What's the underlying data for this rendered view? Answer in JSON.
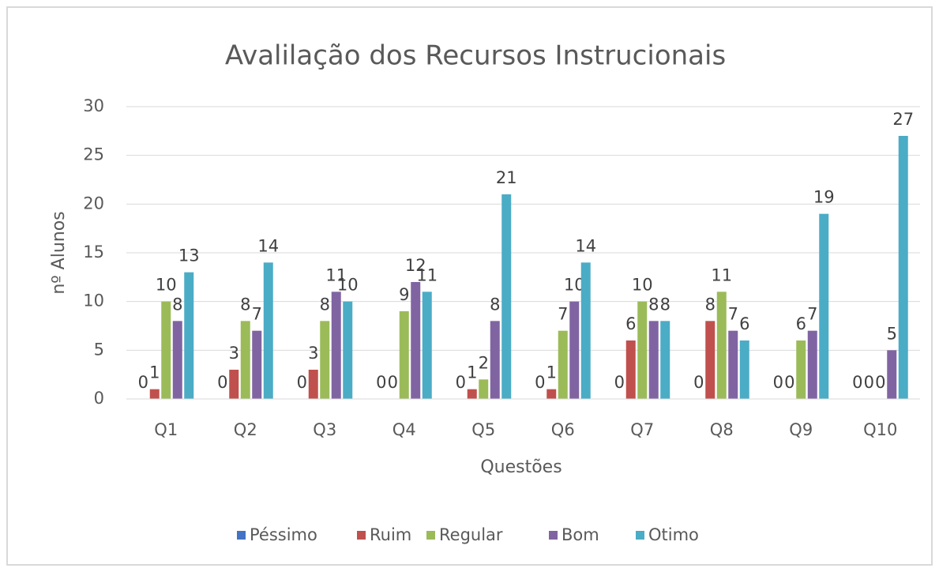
{
  "chart_data": {
    "type": "bar",
    "title": "Avalilação dos Recursos Instrucionais",
    "x_label": "Questões",
    "y_label": "nº Alunos",
    "categories": [
      "Q1",
      "Q2",
      "Q3",
      "Q4",
      "Q5",
      "Q6",
      "Q7",
      "Q8",
      "Q9",
      "Q10"
    ],
    "series": [
      {
        "name": "Péssimo",
        "color": "#4472c4",
        "values": [
          0,
          0,
          0,
          0,
          0,
          0,
          0,
          0,
          0,
          0
        ]
      },
      {
        "name": "Ruim",
        "color": "#c0504d",
        "values": [
          1,
          3,
          3,
          0,
          1,
          1,
          6,
          8,
          0,
          0
        ]
      },
      {
        "name": "Regular",
        "color": "#9bbb59",
        "values": [
          10,
          8,
          8,
          9,
          2,
          7,
          10,
          11,
          6,
          0
        ]
      },
      {
        "name": "Bom",
        "color": "#8064a2",
        "values": [
          8,
          7,
          11,
          12,
          8,
          10,
          8,
          7,
          7,
          5
        ]
      },
      {
        "name": "Otimo",
        "color": "#4bacc6",
        "values": [
          13,
          14,
          10,
          11,
          21,
          14,
          8,
          6,
          19,
          27
        ]
      }
    ],
    "ylim": [
      0,
      30
    ],
    "yticks": [
      0,
      5,
      10,
      15,
      20,
      25,
      30
    ],
    "grid": true,
    "legend": "bottom"
  }
}
